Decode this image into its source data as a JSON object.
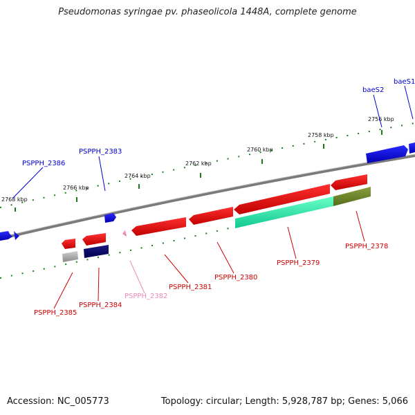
{
  "title": "Pseudomonas syringae pv. phaseolicola 1448A, complete genome",
  "footer": {
    "accession": "Accession: NC_005773",
    "summary": "Topology: circular; Length: 5,928,787 bp; Genes: 5,066"
  },
  "colors": {
    "backbone": "#7a7a7a",
    "forward_label": "#0000cc",
    "reverse_label": "#cc0000",
    "pseudo_label": "#e88ab4",
    "tick": "#1a7a1a"
  },
  "scale": {
    "ticks": [
      "2768 kbp",
      "2766 kbp",
      "2764 kbp",
      "2762 kbp",
      "2760 kbp",
      "2758 kbp",
      "2756 kbp"
    ]
  },
  "genes": {
    "forward": [
      "PSPPH_2386",
      "PSPPH_2383",
      "baeS2",
      "baeS1"
    ],
    "reverse": [
      "PSPPH_2385",
      "PSPPH_2384",
      "PSPPH_2382",
      "PSPPH_2381",
      "PSPPH_2380",
      "PSPPH_2379",
      "PSPPH_2378"
    ]
  }
}
